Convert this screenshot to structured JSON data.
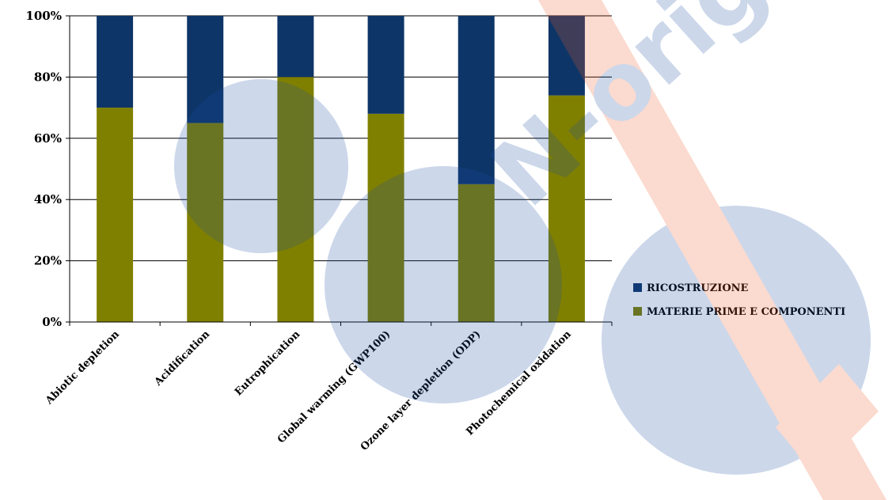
{
  "chart_data": {
    "type": "bar",
    "stacked": true,
    "percent": true,
    "categories": [
      "Abiotic depletion",
      "Acidification",
      "Eutrophication",
      "Global warming (GWP100)",
      "Ozone layer depletion (ODP)",
      "Photochemical oxidation"
    ],
    "series": [
      {
        "name": "MATERIE PRIME E COMPONENTI",
        "color": "#808000",
        "values": [
          70,
          65,
          80,
          68,
          45,
          74
        ]
      },
      {
        "name": "RICOSTRUZIONE",
        "color": "#0e3568",
        "values": [
          30,
          35,
          20,
          32,
          55,
          26
        ]
      }
    ],
    "yticks": [
      "0%",
      "20%",
      "40%",
      "60%",
      "80%",
      "100%"
    ],
    "ylim": [
      0,
      100
    ],
    "grid": true,
    "legend_position": "right",
    "legend_order": [
      "RICOSTRUZIONE",
      "MATERIE PRIME E COMPONENTI"
    ],
    "title": "",
    "xlabel": "",
    "ylabel": ""
  },
  "watermark": {
    "text": "NON-original",
    "colors": [
      "#1a4ea3",
      "#f05a28"
    ]
  }
}
